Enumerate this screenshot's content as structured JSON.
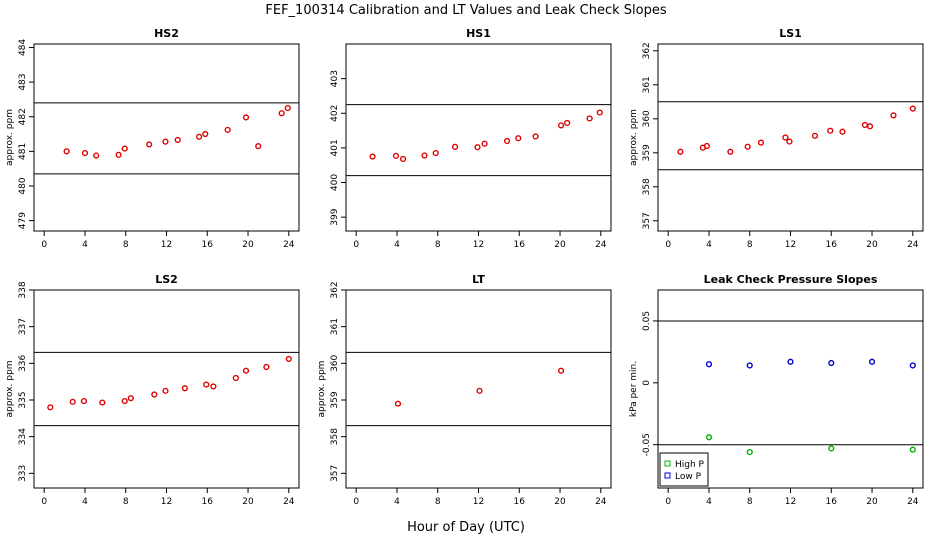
{
  "figure": {
    "title": "FEF_100314  Calibration and LT Values and Leak Check Slopes",
    "xlabel": "Hour of Day (UTC)"
  },
  "colors": {
    "red": "#e00000",
    "blue": "#0000d0",
    "green": "#00b000",
    "axis": "#000000"
  },
  "chart_data": [
    {
      "type": "scatter",
      "title": "HS2",
      "ylabel": "approx. ppm",
      "xlim": [
        -1,
        25
      ],
      "ylim": [
        478.7,
        484.1
      ],
      "xticks": [
        0,
        4,
        8,
        12,
        16,
        20,
        24
      ],
      "yticks": [
        479,
        480,
        481,
        482,
        483,
        484
      ],
      "hlines": [
        480.35,
        482.4
      ],
      "series": [
        {
          "color": "red",
          "x": [
            2.2,
            4.0,
            5.1,
            7.3,
            7.9,
            10.3,
            11.9,
            13.1,
            15.2,
            15.8,
            18.0,
            19.8,
            21.0,
            23.3,
            23.9
          ],
          "y": [
            481.0,
            480.95,
            480.88,
            480.9,
            481.08,
            481.2,
            481.28,
            481.33,
            481.42,
            481.5,
            481.62,
            481.98,
            481.15,
            482.1,
            482.25
          ]
        }
      ]
    },
    {
      "type": "scatter",
      "title": "HS1",
      "ylabel": "",
      "xlim": [
        -1,
        25
      ],
      "ylim": [
        398.6,
        404.0
      ],
      "xticks": [
        0,
        4,
        8,
        12,
        16,
        20,
        24
      ],
      "yticks": [
        399,
        400,
        401,
        402,
        403
      ],
      "hlines": [
        400.2,
        402.25
      ],
      "series": [
        {
          "color": "red",
          "x": [
            1.6,
            3.9,
            4.6,
            6.7,
            7.8,
            9.7,
            11.9,
            12.6,
            14.8,
            15.9,
            17.6,
            20.1,
            20.7,
            22.9,
            23.9
          ],
          "y": [
            400.75,
            400.77,
            400.68,
            400.78,
            400.85,
            401.03,
            401.02,
            401.12,
            401.2,
            401.28,
            401.33,
            401.65,
            401.72,
            401.85,
            402.02
          ]
        }
      ]
    },
    {
      "type": "scatter",
      "title": "LS1",
      "ylabel": "approx. ppm",
      "xlim": [
        -1,
        25
      ],
      "ylim": [
        356.7,
        362.2
      ],
      "xticks": [
        0,
        4,
        8,
        12,
        16,
        20,
        24
      ],
      "yticks": [
        357,
        358,
        359,
        360,
        361,
        362
      ],
      "hlines": [
        358.5,
        360.5
      ],
      "series": [
        {
          "color": "red",
          "x": [
            1.2,
            3.4,
            3.8,
            6.1,
            7.8,
            9.1,
            11.5,
            11.9,
            14.4,
            15.9,
            17.1,
            19.3,
            19.8,
            22.1,
            24.0
          ],
          "y": [
            359.03,
            359.15,
            359.2,
            359.03,
            359.18,
            359.3,
            359.45,
            359.33,
            359.5,
            359.65,
            359.62,
            359.82,
            359.78,
            360.1,
            360.3
          ]
        }
      ]
    },
    {
      "type": "scatter",
      "title": "LS2",
      "ylabel": "approx. ppm",
      "xlim": [
        -1,
        25
      ],
      "ylim": [
        332.6,
        338.0
      ],
      "xticks": [
        0,
        4,
        8,
        12,
        16,
        20,
        24
      ],
      "yticks": [
        333,
        334,
        335,
        336,
        337,
        338
      ],
      "hlines": [
        334.3,
        336.3
      ],
      "series": [
        {
          "color": "red",
          "x": [
            0.6,
            2.8,
            3.9,
            5.7,
            7.9,
            8.5,
            10.8,
            11.9,
            13.8,
            15.9,
            16.6,
            18.8,
            19.8,
            21.8,
            24.0
          ],
          "y": [
            334.8,
            334.95,
            334.97,
            334.93,
            334.97,
            335.05,
            335.15,
            335.25,
            335.32,
            335.42,
            335.37,
            335.6,
            335.8,
            335.9,
            336.12
          ]
        }
      ]
    },
    {
      "type": "scatter",
      "title": "LT",
      "ylabel": "approx. ppm",
      "xlim": [
        -1,
        25
      ],
      "ylim": [
        356.6,
        362.0
      ],
      "xticks": [
        0,
        4,
        8,
        12,
        16,
        20,
        24
      ],
      "yticks": [
        357,
        358,
        359,
        360,
        361,
        362
      ],
      "hlines": [
        358.3,
        360.3
      ],
      "series": [
        {
          "color": "red",
          "x": [
            4.1,
            12.1,
            20.1
          ],
          "y": [
            358.9,
            359.25,
            359.8
          ]
        }
      ]
    },
    {
      "type": "scatter",
      "title": "Leak Check Pressure Slopes",
      "ylabel": "kPa per min.",
      "xlim": [
        -1,
        25
      ],
      "ylim": [
        -0.085,
        0.075
      ],
      "xticks": [
        0,
        4,
        8,
        12,
        16,
        20,
        24
      ],
      "yticks": [
        -0.05,
        0.0,
        0.05
      ],
      "hlines": [
        0.05,
        -0.05
      ],
      "legend": {
        "position": "bottom-left",
        "items": [
          "High P",
          "Low P"
        ]
      },
      "series": [
        {
          "name": "High P",
          "color": "green",
          "x": [
            4.0,
            8.0,
            16.0,
            24.0
          ],
          "y": [
            -0.044,
            -0.056,
            -0.053,
            -0.054
          ]
        },
        {
          "name": "Low P",
          "color": "blue",
          "x": [
            4.0,
            8.0,
            12.0,
            16.0,
            20.0,
            24.0
          ],
          "y": [
            0.015,
            0.014,
            0.017,
            0.016,
            0.017,
            0.014
          ]
        }
      ]
    }
  ]
}
